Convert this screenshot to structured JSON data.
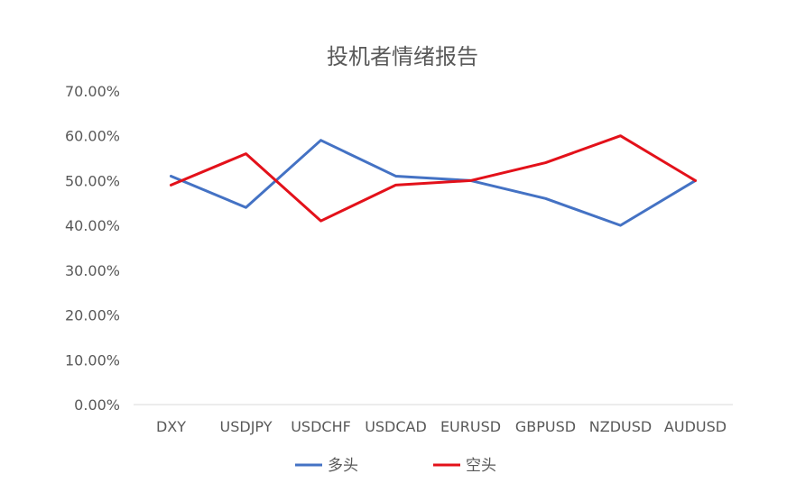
{
  "chart_data": {
    "type": "line",
    "title": "投机者情绪报告",
    "xlabel": "",
    "ylabel": "",
    "categories": [
      "DXY",
      "USDJPY",
      "USDCHF",
      "USDCAD",
      "EURUSD",
      "GBPUSD",
      "NZDUSD",
      "AUDUSD"
    ],
    "ylim": [
      0,
      70
    ],
    "yticks": [
      "0.00%",
      "10.00%",
      "20.00%",
      "30.00%",
      "40.00%",
      "50.00%",
      "60.00%",
      "70.00%"
    ],
    "grid": false,
    "legend_position": "bottom",
    "series": [
      {
        "name": "多头",
        "color": "#4472C4",
        "values": [
          51,
          44,
          59,
          51,
          50,
          46,
          40,
          50
        ]
      },
      {
        "name": "空头",
        "color": "#E3111A",
        "values": [
          49,
          56,
          41,
          49,
          50,
          54,
          60,
          50
        ]
      }
    ]
  }
}
